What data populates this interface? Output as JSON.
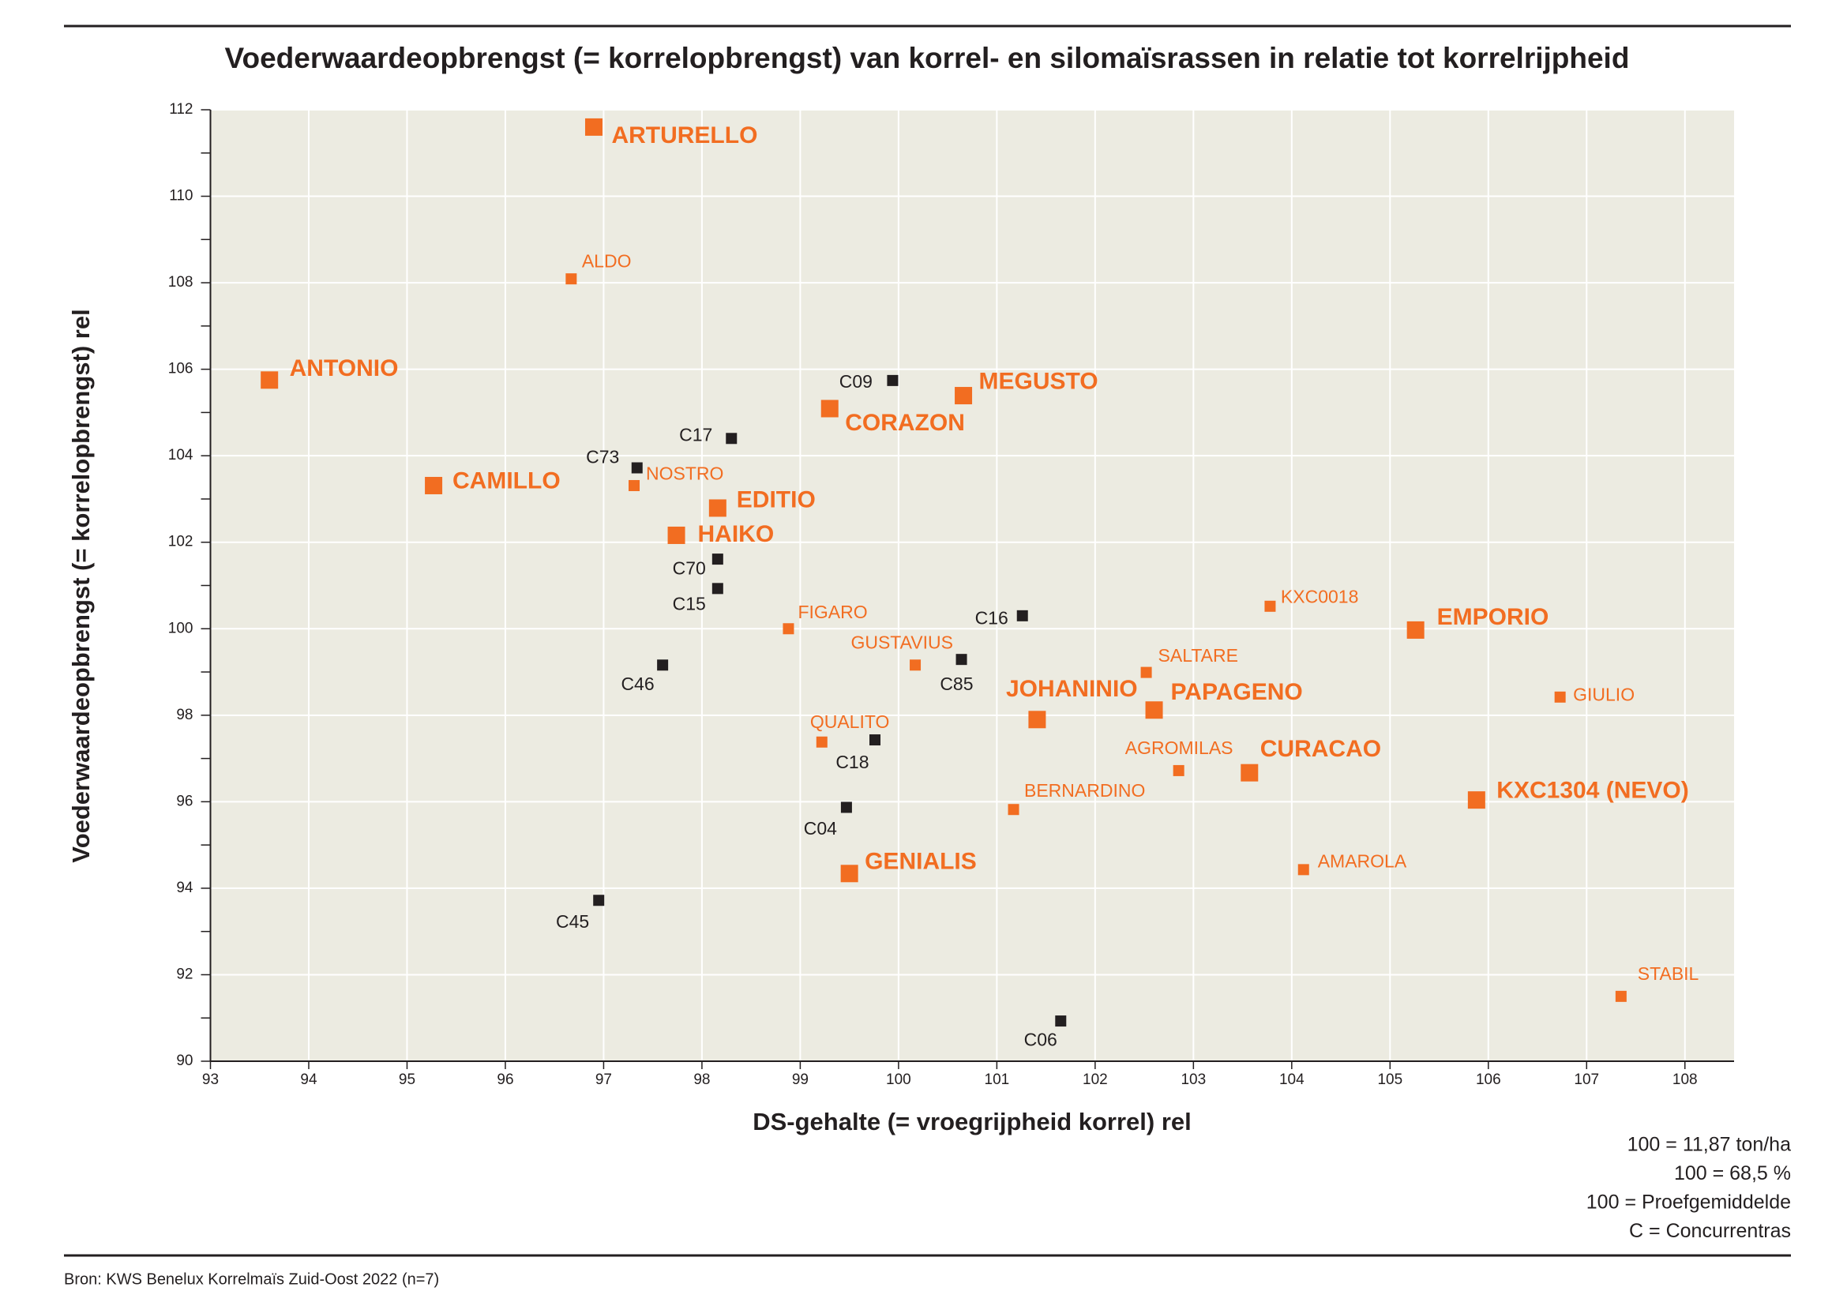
{
  "chart_data": {
    "type": "scatter",
    "title": "Voederwaardeopbrengst (= korrelopbrengst) van korrel- en silomaïsrassen in relatie tot korrelrijpheid",
    "xlabel": "DS-gehalte (= vroegrijpheid korrel) rel",
    "ylabel": "Voederwaardeopbrengst (= korrelopbrengst) rel",
    "xlim": [
      93,
      108.5
    ],
    "ylim": [
      90,
      112
    ],
    "xticks": [
      93,
      94,
      95,
      96,
      97,
      98,
      99,
      100,
      101,
      102,
      103,
      104,
      105,
      106,
      107,
      108
    ],
    "yticks": [
      90,
      92,
      94,
      96,
      98,
      100,
      102,
      104,
      106,
      108,
      110,
      112
    ],
    "y_minor_ticks": [
      91,
      93,
      95,
      97,
      99,
      101,
      103,
      105,
      107,
      109,
      111
    ],
    "grid": true,
    "series": [
      {
        "color": "#f26d21",
        "labels": [
          "ARTURELLO",
          "ANTONIO",
          "MEGUSTO",
          "CORAZON",
          "CAMILLO",
          "EDITIO",
          "HAIKO",
          "EMPORIO",
          "JOHANINIO",
          "PAPAGENO",
          "CURACAO",
          "KXC1304 (NEVO)",
          "GENIALIS"
        ],
        "x": [
          96.9,
          93.6,
          100.66,
          99.3,
          95.27,
          98.16,
          97.74,
          105.26,
          101.41,
          102.6,
          103.57,
          105.88,
          99.5
        ],
        "values": [
          111.6,
          105.75,
          105.39,
          105.09,
          103.31,
          102.79,
          102.16,
          99.97,
          97.9,
          98.12,
          96.67,
          96.04,
          94.34
        ]
      },
      {
        "color": "#f26d21",
        "labels": [
          "ALDO",
          "NOSTRO",
          "FIGARO",
          "KXC0018",
          "SALTARE",
          "GUSTAVIUS",
          "GIULIO",
          "QUALITO",
          "AGROMILAS",
          "BERNARDINO",
          "AMAROLA",
          "STABIL"
        ],
        "x": [
          96.67,
          97.31,
          98.88,
          103.78,
          102.52,
          100.17,
          106.73,
          99.22,
          102.85,
          101.17,
          104.12,
          107.35
        ],
        "values": [
          108.09,
          103.31,
          100.0,
          100.52,
          98.99,
          99.16,
          98.42,
          97.38,
          96.72,
          95.82,
          94.43,
          91.5
        ]
      },
      {
        "color": "#231f20",
        "labels": [
          "C09",
          "C17",
          "C73",
          "C70",
          "C15",
          "C16",
          "C85",
          "C46",
          "C18",
          "C04",
          "C45",
          "C06"
        ],
        "x": [
          99.94,
          98.3,
          97.34,
          98.16,
          98.16,
          101.26,
          100.64,
          97.6,
          99.76,
          99.47,
          96.95,
          101.65
        ],
        "values": [
          105.74,
          104.4,
          103.72,
          101.61,
          100.93,
          100.3,
          99.29,
          99.16,
          97.43,
          95.87,
          93.72,
          90.93
        ]
      }
    ],
    "notes": [
      "100 = 11,87 ton/ha",
      "100 = 68,5 %",
      "100 = Proefgemiddelde",
      "C = Concurrentras"
    ],
    "source": "Bron: KWS Benelux Korrelmaïs Zuid-Oost 2022 (n=7)"
  }
}
